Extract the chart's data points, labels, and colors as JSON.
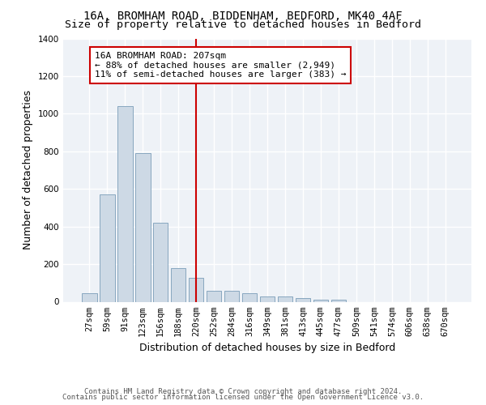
{
  "title_line1": "16A, BROMHAM ROAD, BIDDENHAM, BEDFORD, MK40 4AF",
  "title_line2": "Size of property relative to detached houses in Bedford",
  "xlabel": "Distribution of detached houses by size in Bedford",
  "ylabel": "Number of detached properties",
  "bar_color": "#cdd9e5",
  "bar_edge_color": "#7a9db8",
  "categories": [
    "27sqm",
    "59sqm",
    "91sqm",
    "123sqm",
    "156sqm",
    "188sqm",
    "220sqm",
    "252sqm",
    "284sqm",
    "316sqm",
    "349sqm",
    "381sqm",
    "413sqm",
    "445sqm",
    "477sqm",
    "509sqm",
    "541sqm",
    "574sqm",
    "606sqm",
    "638sqm",
    "670sqm"
  ],
  "values": [
    47,
    572,
    1040,
    790,
    420,
    180,
    128,
    60,
    58,
    47,
    30,
    28,
    20,
    12,
    10,
    0,
    0,
    0,
    0,
    0,
    0
  ],
  "vline_x": 6.0,
  "annotation_text_line1": "16A BROMHAM ROAD: 207sqm",
  "annotation_text_line2": "← 88% of detached houses are smaller (2,949)",
  "annotation_text_line3": "11% of semi-detached houses are larger (383) →",
  "annotation_box_color": "#ffffff",
  "annotation_border_color": "#cc0000",
  "vline_color": "#cc0000",
  "ylim": [
    0,
    1400
  ],
  "yticks": [
    0,
    200,
    400,
    600,
    800,
    1000,
    1200,
    1400
  ],
  "background_color": "#eef2f7",
  "grid_color": "#ffffff",
  "footer_line1": "Contains HM Land Registry data © Crown copyright and database right 2024.",
  "footer_line2": "Contains public sector information licensed under the Open Government Licence v3.0.",
  "title_fontsize": 10,
  "subtitle_fontsize": 9.5,
  "axis_label_fontsize": 9,
  "tick_fontsize": 7.5,
  "annotation_fontsize": 8,
  "footer_fontsize": 6.5
}
